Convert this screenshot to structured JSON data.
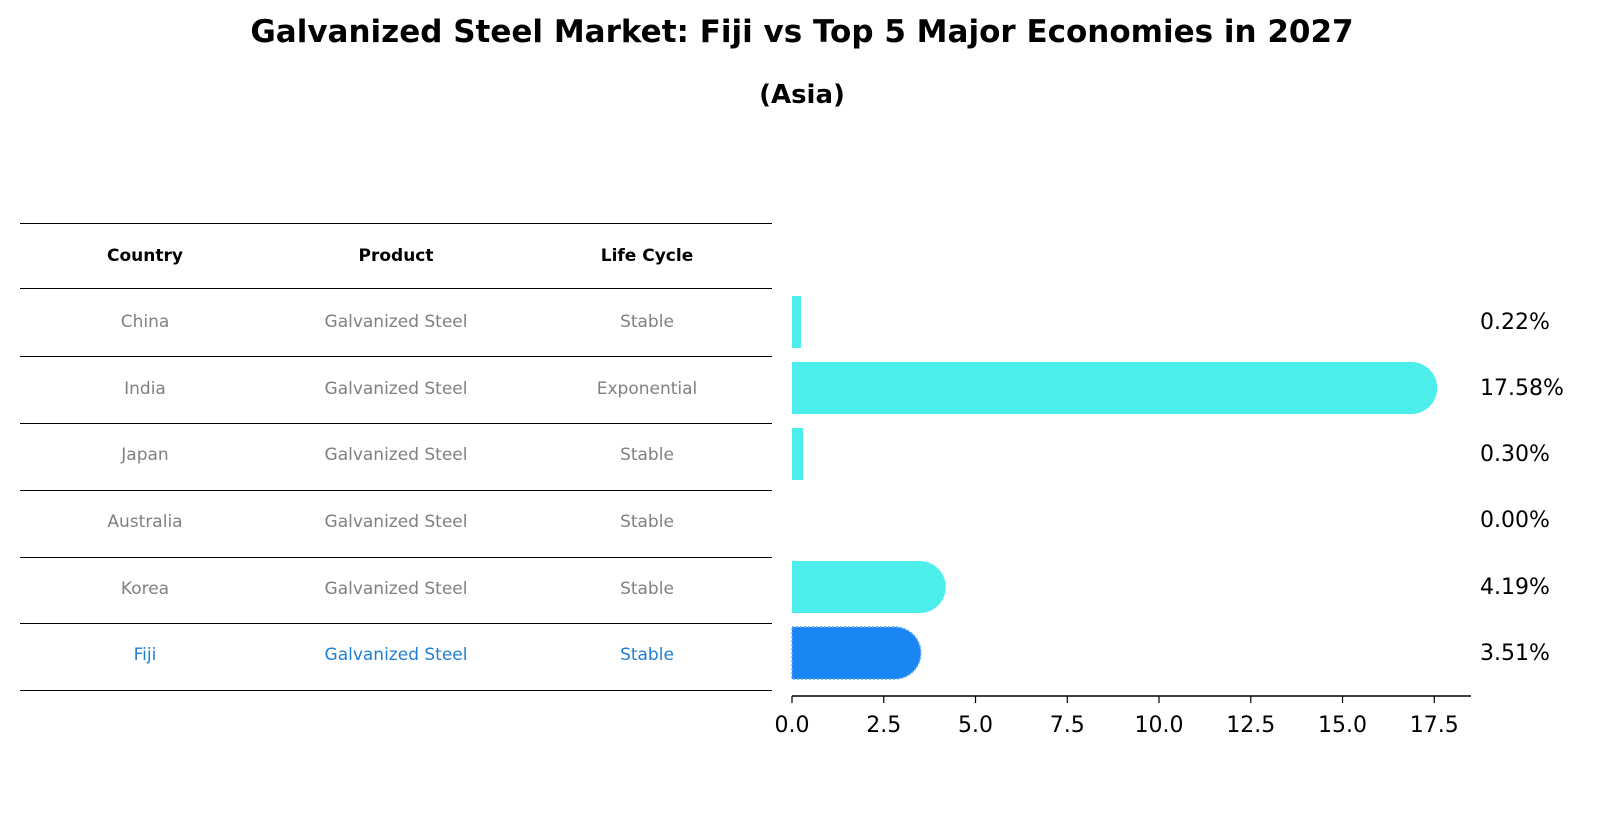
{
  "title": "Galvanized Steel Market: Fiji vs Top 5 Major Economies in 2027",
  "subtitle": "(Asia)",
  "table": {
    "headers": [
      "Country",
      "Product",
      "Life Cycle"
    ],
    "rows": [
      {
        "country": "China",
        "product": "Galvanized Steel",
        "life_cycle": "Stable"
      },
      {
        "country": "India",
        "product": "Galvanized Steel",
        "life_cycle": "Exponential"
      },
      {
        "country": "Japan",
        "product": "Galvanized Steel",
        "life_cycle": "Stable"
      },
      {
        "country": "Australia",
        "product": "Galvanized Steel",
        "life_cycle": "Stable"
      },
      {
        "country": "Korea",
        "product": "Galvanized Steel",
        "life_cycle": "Stable"
      },
      {
        "country": "Fiji",
        "product": "Galvanized Steel",
        "life_cycle": "Stable"
      }
    ]
  },
  "chart_data": {
    "type": "bar",
    "orientation": "horizontal",
    "title": "Galvanized Steel Market: Fiji vs Top 5 Major Economies in 2027",
    "subtitle": "(Asia)",
    "categories": [
      "China",
      "India",
      "Japan",
      "Australia",
      "Korea",
      "Fiji"
    ],
    "values": [
      0.22,
      17.58,
      0.3,
      0.0,
      4.19,
      3.51
    ],
    "value_labels": [
      "0.22%",
      "17.58%",
      "0.30%",
      "0.00%",
      "4.19%",
      "3.51%"
    ],
    "highlight": "Fiji",
    "xlim": [
      0,
      18.5
    ],
    "xticks": [
      0.0,
      2.5,
      5.0,
      7.5,
      10.0,
      12.5,
      15.0,
      17.5
    ],
    "xtick_labels": [
      "0.0",
      "2.5",
      "5.0",
      "7.5",
      "10.0",
      "12.5",
      "15.0",
      "17.5"
    ],
    "xlabel": "",
    "ylabel": "",
    "grid": false,
    "colors": {
      "default": "#4beeea",
      "highlight": "#1a86f4"
    }
  }
}
